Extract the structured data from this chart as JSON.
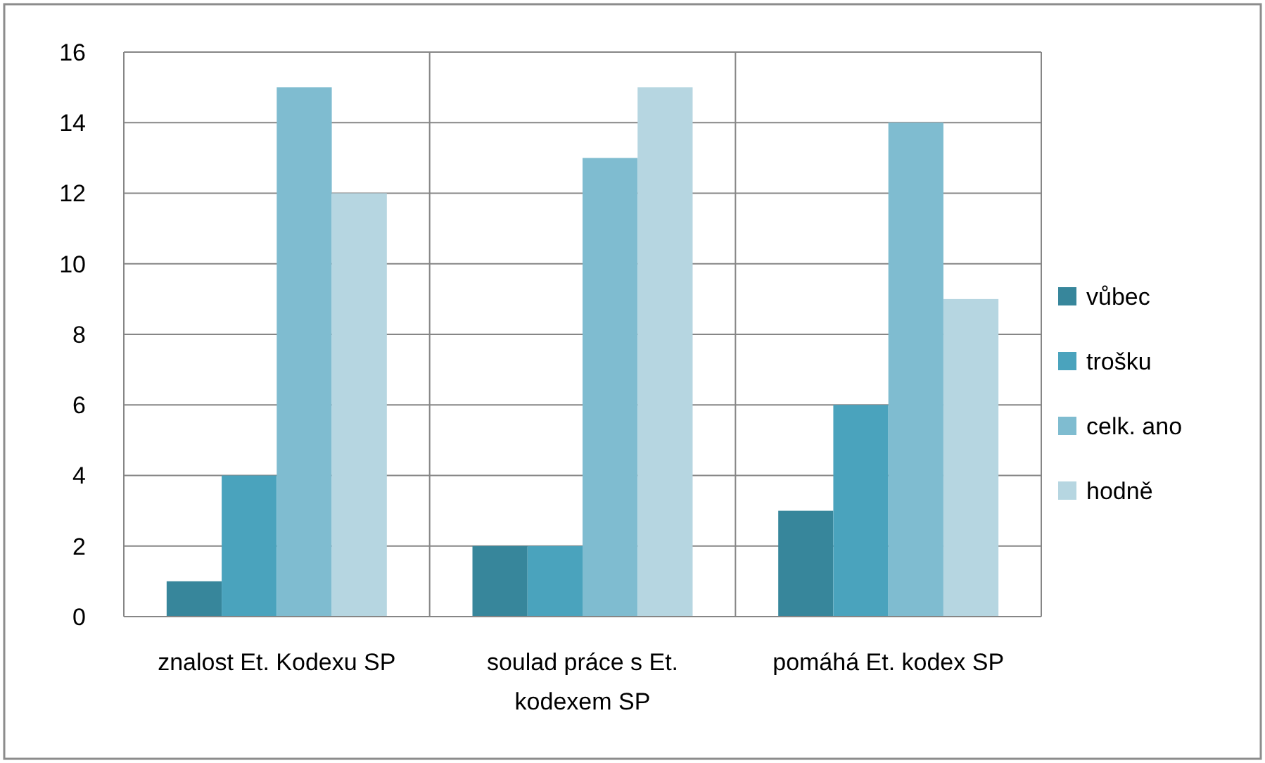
{
  "chart_data": {
    "type": "bar",
    "categories": [
      "znalost Et. Kodexu SP",
      "soulad práce s Et. kodexem SP",
      "pomáhá Et. kodex SP"
    ],
    "series": [
      {
        "name": "vůbec",
        "color": "#37869b",
        "values": [
          1,
          2,
          3
        ]
      },
      {
        "name": "trošku",
        "color": "#4aa3bd",
        "values": [
          4,
          2,
          6
        ]
      },
      {
        "name": "celk. ano",
        "color": "#7fbcd0",
        "values": [
          15,
          13,
          14
        ]
      },
      {
        "name": "hodně",
        "color": "#b6d6e1",
        "values": [
          12,
          15,
          9
        ]
      }
    ],
    "ylim": [
      0,
      16
    ],
    "yticks": [
      0,
      2,
      4,
      6,
      8,
      10,
      12,
      14,
      16
    ],
    "grid": true,
    "legend": "right"
  }
}
